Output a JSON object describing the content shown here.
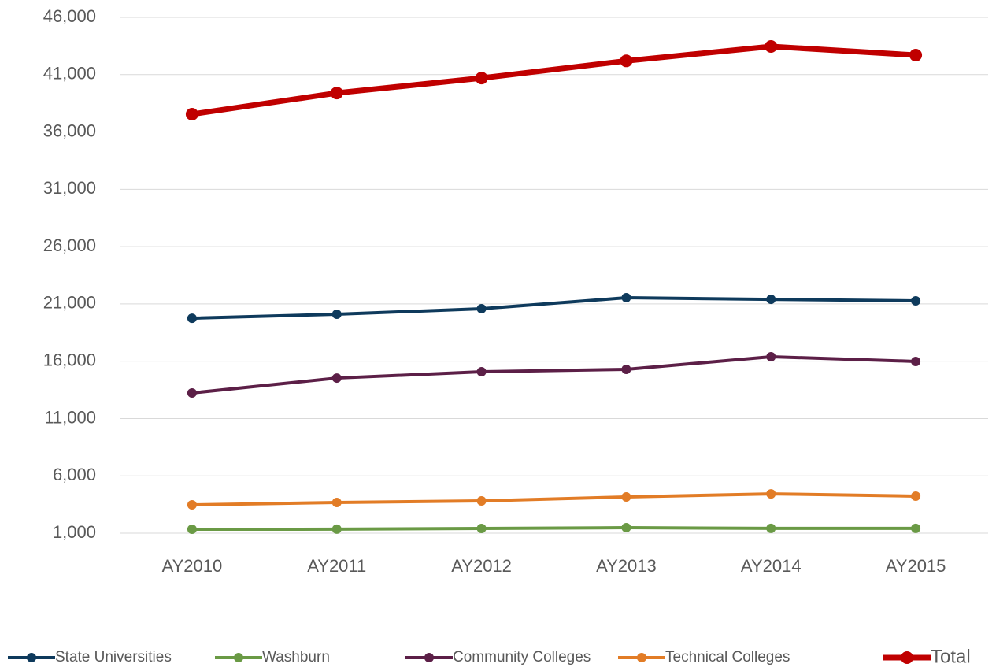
{
  "chart_data": {
    "type": "line",
    "categories": [
      "AY2010",
      "AY2011",
      "AY2012",
      "AY2013",
      "AY2014",
      "AY2015"
    ],
    "series": [
      {
        "name": "State Universities",
        "color": "#0e3a5c",
        "values": [
          19750,
          20100,
          20580,
          21540,
          21400,
          21270
        ]
      },
      {
        "name": "Washburn",
        "color": "#6a9a45",
        "values": [
          1340,
          1350,
          1410,
          1480,
          1420,
          1420
        ]
      },
      {
        "name": "Community Colleges",
        "color": "#5c1f47",
        "values": [
          13230,
          14530,
          15080,
          15290,
          16390,
          15980
        ]
      },
      {
        "name": "Technical Colleges",
        "color": "#e27c26",
        "values": [
          3470,
          3680,
          3820,
          4160,
          4430,
          4230
        ]
      },
      {
        "name": "Total",
        "color": "#c00000",
        "values": [
          37550,
          39400,
          40700,
          42200,
          43460,
          42700
        ]
      }
    ],
    "ylim": [
      1000,
      46000
    ],
    "yticks": [
      {
        "value": 1000,
        "label": "1,000"
      },
      {
        "value": 6000,
        "label": "6,000"
      },
      {
        "value": 11000,
        "label": "11,000"
      },
      {
        "value": 16000,
        "label": "16,000"
      },
      {
        "value": 21000,
        "label": "21,000"
      },
      {
        "value": 26000,
        "label": "26,000"
      },
      {
        "value": 31000,
        "label": "31,000"
      },
      {
        "value": 36000,
        "label": "36,000"
      },
      {
        "value": 41000,
        "label": "41,000"
      },
      {
        "value": 46000,
        "label": "46,000"
      }
    ],
    "grid": true,
    "legend": "bottom"
  }
}
